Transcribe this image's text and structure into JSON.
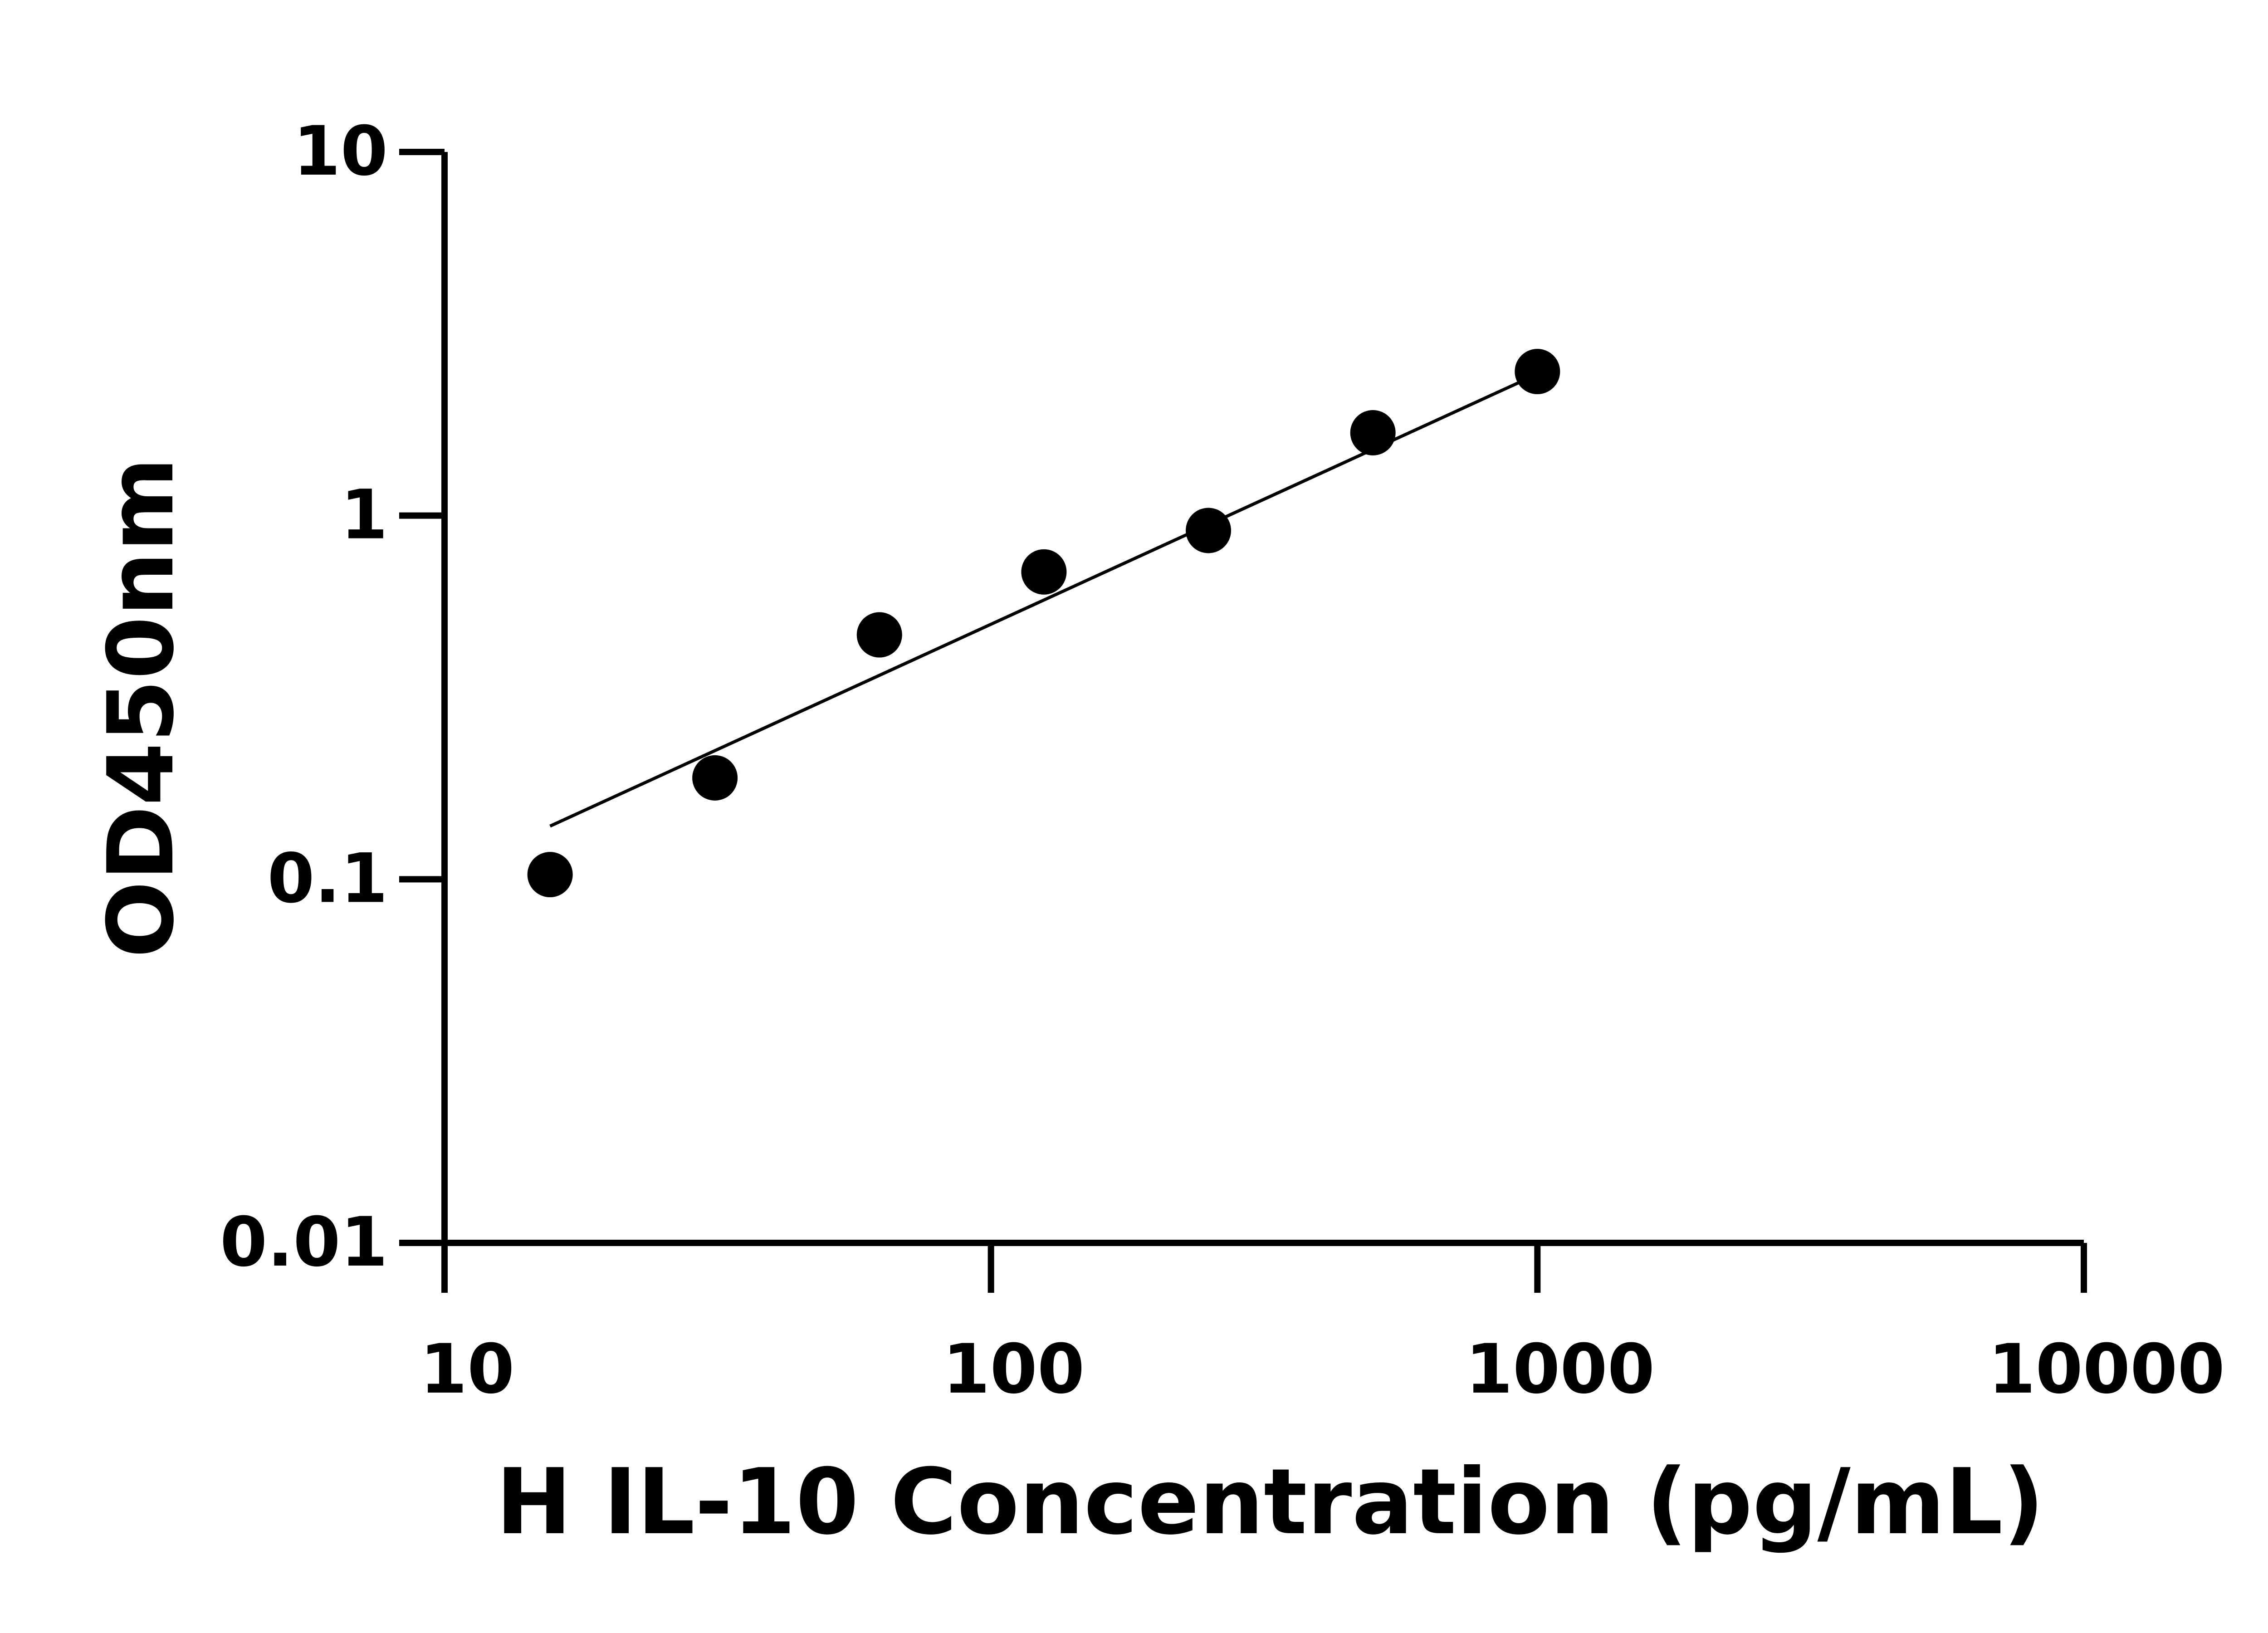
{
  "chart_data": {
    "type": "scatter",
    "xlabel": "H IL-10 Concentration (pg/mL)",
    "ylabel": "OD450nm",
    "x_scale": "log",
    "y_scale": "log",
    "xlim": [
      10,
      10000
    ],
    "ylim": [
      0.01,
      10
    ],
    "x_ticks": [
      "10",
      "100",
      "1000",
      "10000"
    ],
    "y_ticks": [
      "0.01",
      "0.1",
      "1",
      "10"
    ],
    "grid": false,
    "color": "#000000",
    "points": {
      "x": [
        15.6,
        31.25,
        62.5,
        125,
        250,
        500,
        1000
      ],
      "y": [
        0.103,
        0.19,
        0.47,
        0.7,
        0.91,
        1.69,
        2.49
      ]
    },
    "fit_line": {
      "x": [
        15.6,
        1000
      ],
      "y": [
        0.14,
        2.45
      ]
    }
  }
}
